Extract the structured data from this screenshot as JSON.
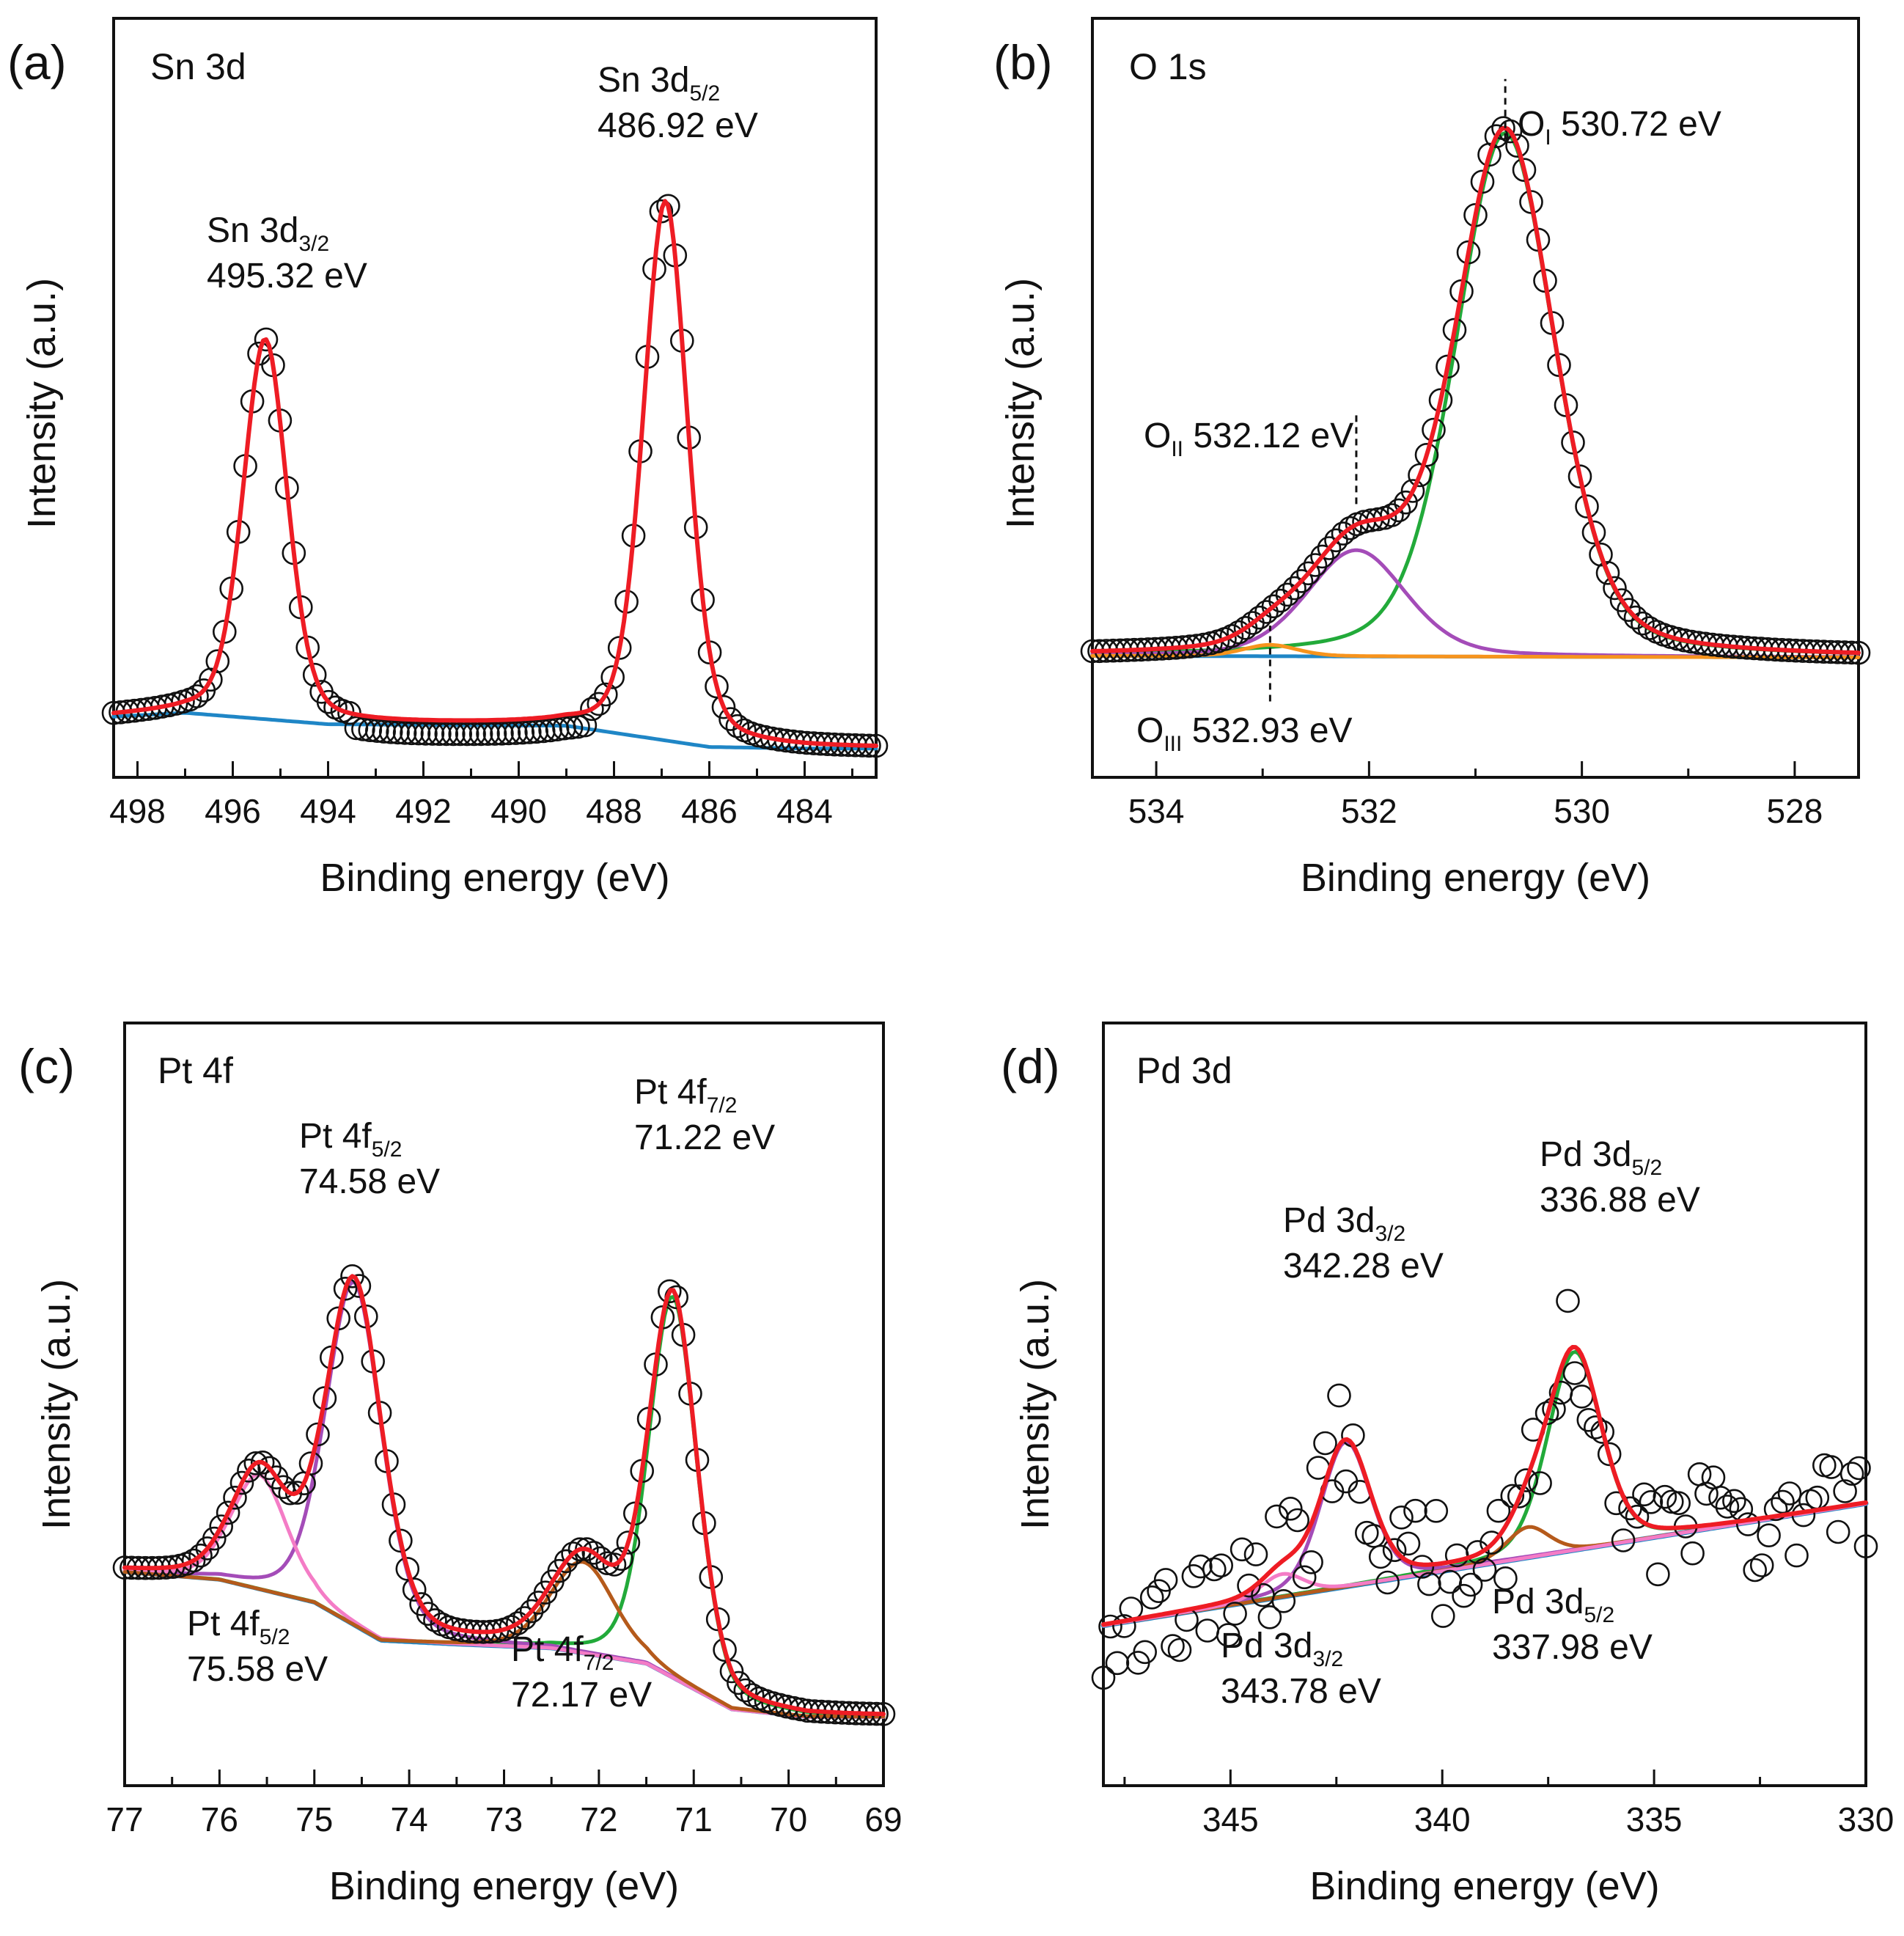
{
  "colors": {
    "raw": "#111111",
    "envelope": "#ee1c24",
    "background": "#1f86c6",
    "green": "#22aa3a",
    "purple": "#a44cb8",
    "pink": "#f47cc6",
    "brown": "#b55a1b",
    "orange": "#f7941d"
  },
  "chart_data": [
    {
      "type": "line",
      "panel": "(a)",
      "title": "Sn 3d",
      "xlabel": "Binding energy (eV)",
      "ylabel": "Intensity (a.u.)",
      "xlim": [
        498.5,
        482.5
      ],
      "ylim": [
        0,
        1
      ],
      "xticks": [
        498,
        496,
        494,
        492,
        490,
        488,
        486,
        484
      ],
      "xtick_labels": [
        "498",
        "496",
        "494",
        "492",
        "490",
        "488",
        "486",
        "484"
      ],
      "yticks": "none",
      "raw_noise": 0.0,
      "background": {
        "name": "background",
        "color": "background",
        "stroke": 5,
        "x": [
          498.5,
          497,
          494,
          489,
          486,
          484,
          482.5
        ],
        "y": [
          0.08,
          0.085,
          0.07,
          0.068,
          0.04,
          0.038,
          0.038
        ]
      },
      "components": [],
      "peaks": [
        {
          "name": "Sn 3d3/2",
          "center": 495.32,
          "height": 0.5,
          "width": 0.55
        },
        {
          "name": "Sn 3d5/2",
          "center": 486.92,
          "height": 0.71,
          "width": 0.55
        }
      ],
      "raw_offset": [
        {
          "from": 493.5,
          "to": 488.5,
          "delta": -0.018
        }
      ],
      "annotations": [
        {
          "id": "a1",
          "main": "Sn 3d",
          "sub": "3/2",
          "value": "495.32 eV"
        },
        {
          "id": "a2",
          "main": "Sn 3d",
          "sub": "5/2",
          "value": "486.92 eV"
        }
      ],
      "markers": []
    },
    {
      "type": "line",
      "panel": "(b)",
      "title": "O 1s",
      "xlabel": "Binding energy (eV)",
      "ylabel": "Intensity (a.u.)",
      "xlim": [
        534.6,
        527.4
      ],
      "ylim": [
        0,
        1
      ],
      "xticks": [
        534,
        532,
        530,
        528
      ],
      "xtick_labels": [
        "534",
        "532",
        "530",
        "528"
      ],
      "yticks": "none",
      "raw_noise": 0.0,
      "background": {
        "name": "background",
        "color": "background",
        "stroke": 5,
        "x": [
          534.6,
          527.4
        ],
        "y": [
          0.16,
          0.158
        ]
      },
      "components": [
        {
          "name": "O I",
          "color": "green",
          "center": 530.72,
          "height": 0.69,
          "width": 0.55
        },
        {
          "name": "O II",
          "color": "purple",
          "center": 532.12,
          "height": 0.14,
          "width": 0.55
        },
        {
          "name": "O III",
          "color": "orange",
          "center": 532.93,
          "height": 0.015,
          "width": 0.3
        }
      ],
      "peaks": [],
      "annotations": [
        {
          "id": "b1",
          "main": "O",
          "sub": "I",
          "value": "530.72 eV"
        },
        {
          "id": "b2",
          "main": "O",
          "sub": "II",
          "value": "532.12 eV"
        },
        {
          "id": "b3",
          "main": "O",
          "sub": "III",
          "value": "532.93 eV"
        }
      ],
      "markers": [
        {
          "x": 530.72,
          "y0": 0.84,
          "y1": 0.92
        },
        {
          "x": 532.12,
          "y0": 0.36,
          "y1": 0.48
        },
        {
          "x": 532.93,
          "y0": 0.1,
          "y1": 0.2
        }
      ]
    },
    {
      "type": "line",
      "panel": "(c)",
      "title": "Pt 4f",
      "xlabel": "Binding energy (eV)",
      "ylabel": "Intensity (a.u.)",
      "xlim": [
        77,
        69
      ],
      "ylim": [
        0,
        1
      ],
      "xticks": [
        77,
        76,
        75,
        74,
        73,
        72,
        71,
        70,
        69
      ],
      "xtick_labels": [
        "77",
        "76",
        "75",
        "74",
        "73",
        "72",
        "71",
        "70",
        "69"
      ],
      "yticks": "none",
      "raw_noise": 0.0,
      "background": {
        "name": "background",
        "color": "background",
        "stroke": 5,
        "x": [
          77,
          76,
          75,
          74.3,
          73.5,
          72.5,
          71.5,
          70.6,
          69.8,
          69
        ],
        "y": [
          0.28,
          0.27,
          0.24,
          0.19,
          0.185,
          0.18,
          0.16,
          0.1,
          0.09,
          0.09
        ]
      },
      "components": [
        {
          "name": "Pt 4f7/2 (71.22)",
          "color": "green",
          "center": 71.22,
          "height": 0.5,
          "width": 0.3
        },
        {
          "name": "Pt 4f5/2 (74.58)",
          "color": "purple",
          "center": 74.58,
          "height": 0.45,
          "width": 0.35
        },
        {
          "name": "Pt 4f5/2 (75.58)",
          "color": "pink",
          "center": 75.58,
          "height": 0.15,
          "width": 0.35
        },
        {
          "name": "Pt 4f7/2 (72.17)",
          "color": "brown",
          "center": 72.17,
          "height": 0.12,
          "width": 0.4
        }
      ],
      "peaks": [],
      "annotations": [
        {
          "id": "c1",
          "main": "Pt 4f",
          "sub": "5/2",
          "value": "74.58 eV"
        },
        {
          "id": "c2",
          "main": "Pt 4f",
          "sub": "7/2",
          "value": "71.22 eV"
        },
        {
          "id": "c3",
          "main": "Pt 4f",
          "sub": "5/2",
          "value": "75.58 eV"
        },
        {
          "id": "c4",
          "main": "Pt 4f",
          "sub": "7/2",
          "value": "72.17 eV"
        }
      ],
      "markers": []
    },
    {
      "type": "line",
      "panel": "(d)",
      "title": "Pd 3d",
      "xlabel": "Binding energy (eV)",
      "ylabel": "Intensity (a.u.)",
      "xlim": [
        348,
        330
      ],
      "ylim": [
        0,
        1
      ],
      "xticks": [
        345,
        340,
        335,
        330
      ],
      "xtick_labels": [
        "345",
        "340",
        "335",
        "330"
      ],
      "yticks": "none",
      "raw_noise": 0.07,
      "background": {
        "name": "background",
        "color": "background",
        "stroke": 7,
        "x": [
          348,
          330
        ],
        "y": [
          0.21,
          0.37
        ]
      },
      "components": [
        {
          "name": "Pd 3d5/2 (336.88)",
          "color": "green",
          "center": 336.88,
          "height": 0.26,
          "width": 0.75
        },
        {
          "name": "Pd 3d3/2 (342.28)",
          "color": "purple",
          "center": 342.28,
          "height": 0.19,
          "width": 0.7
        },
        {
          "name": "Pd 3d5/2 (337.98)",
          "color": "brown",
          "center": 337.98,
          "height": 0.04,
          "width": 0.6
        },
        {
          "name": "Pd 3d3/2 (343.78)",
          "color": "pink",
          "center": 343.78,
          "height": 0.03,
          "width": 0.6
        }
      ],
      "peaks": [],
      "annotations": [
        {
          "id": "d1",
          "main": "Pd 3d",
          "sub": "5/2",
          "value": "336.88 eV"
        },
        {
          "id": "d2",
          "main": "Pd 3d",
          "sub": "3/2",
          "value": "342.28 eV"
        },
        {
          "id": "d3",
          "main": "Pd 3d",
          "sub": "5/2",
          "value": "337.98 eV"
        },
        {
          "id": "d4",
          "main": "Pd 3d",
          "sub": "3/2",
          "value": "343.78 eV"
        }
      ],
      "markers": []
    }
  ]
}
